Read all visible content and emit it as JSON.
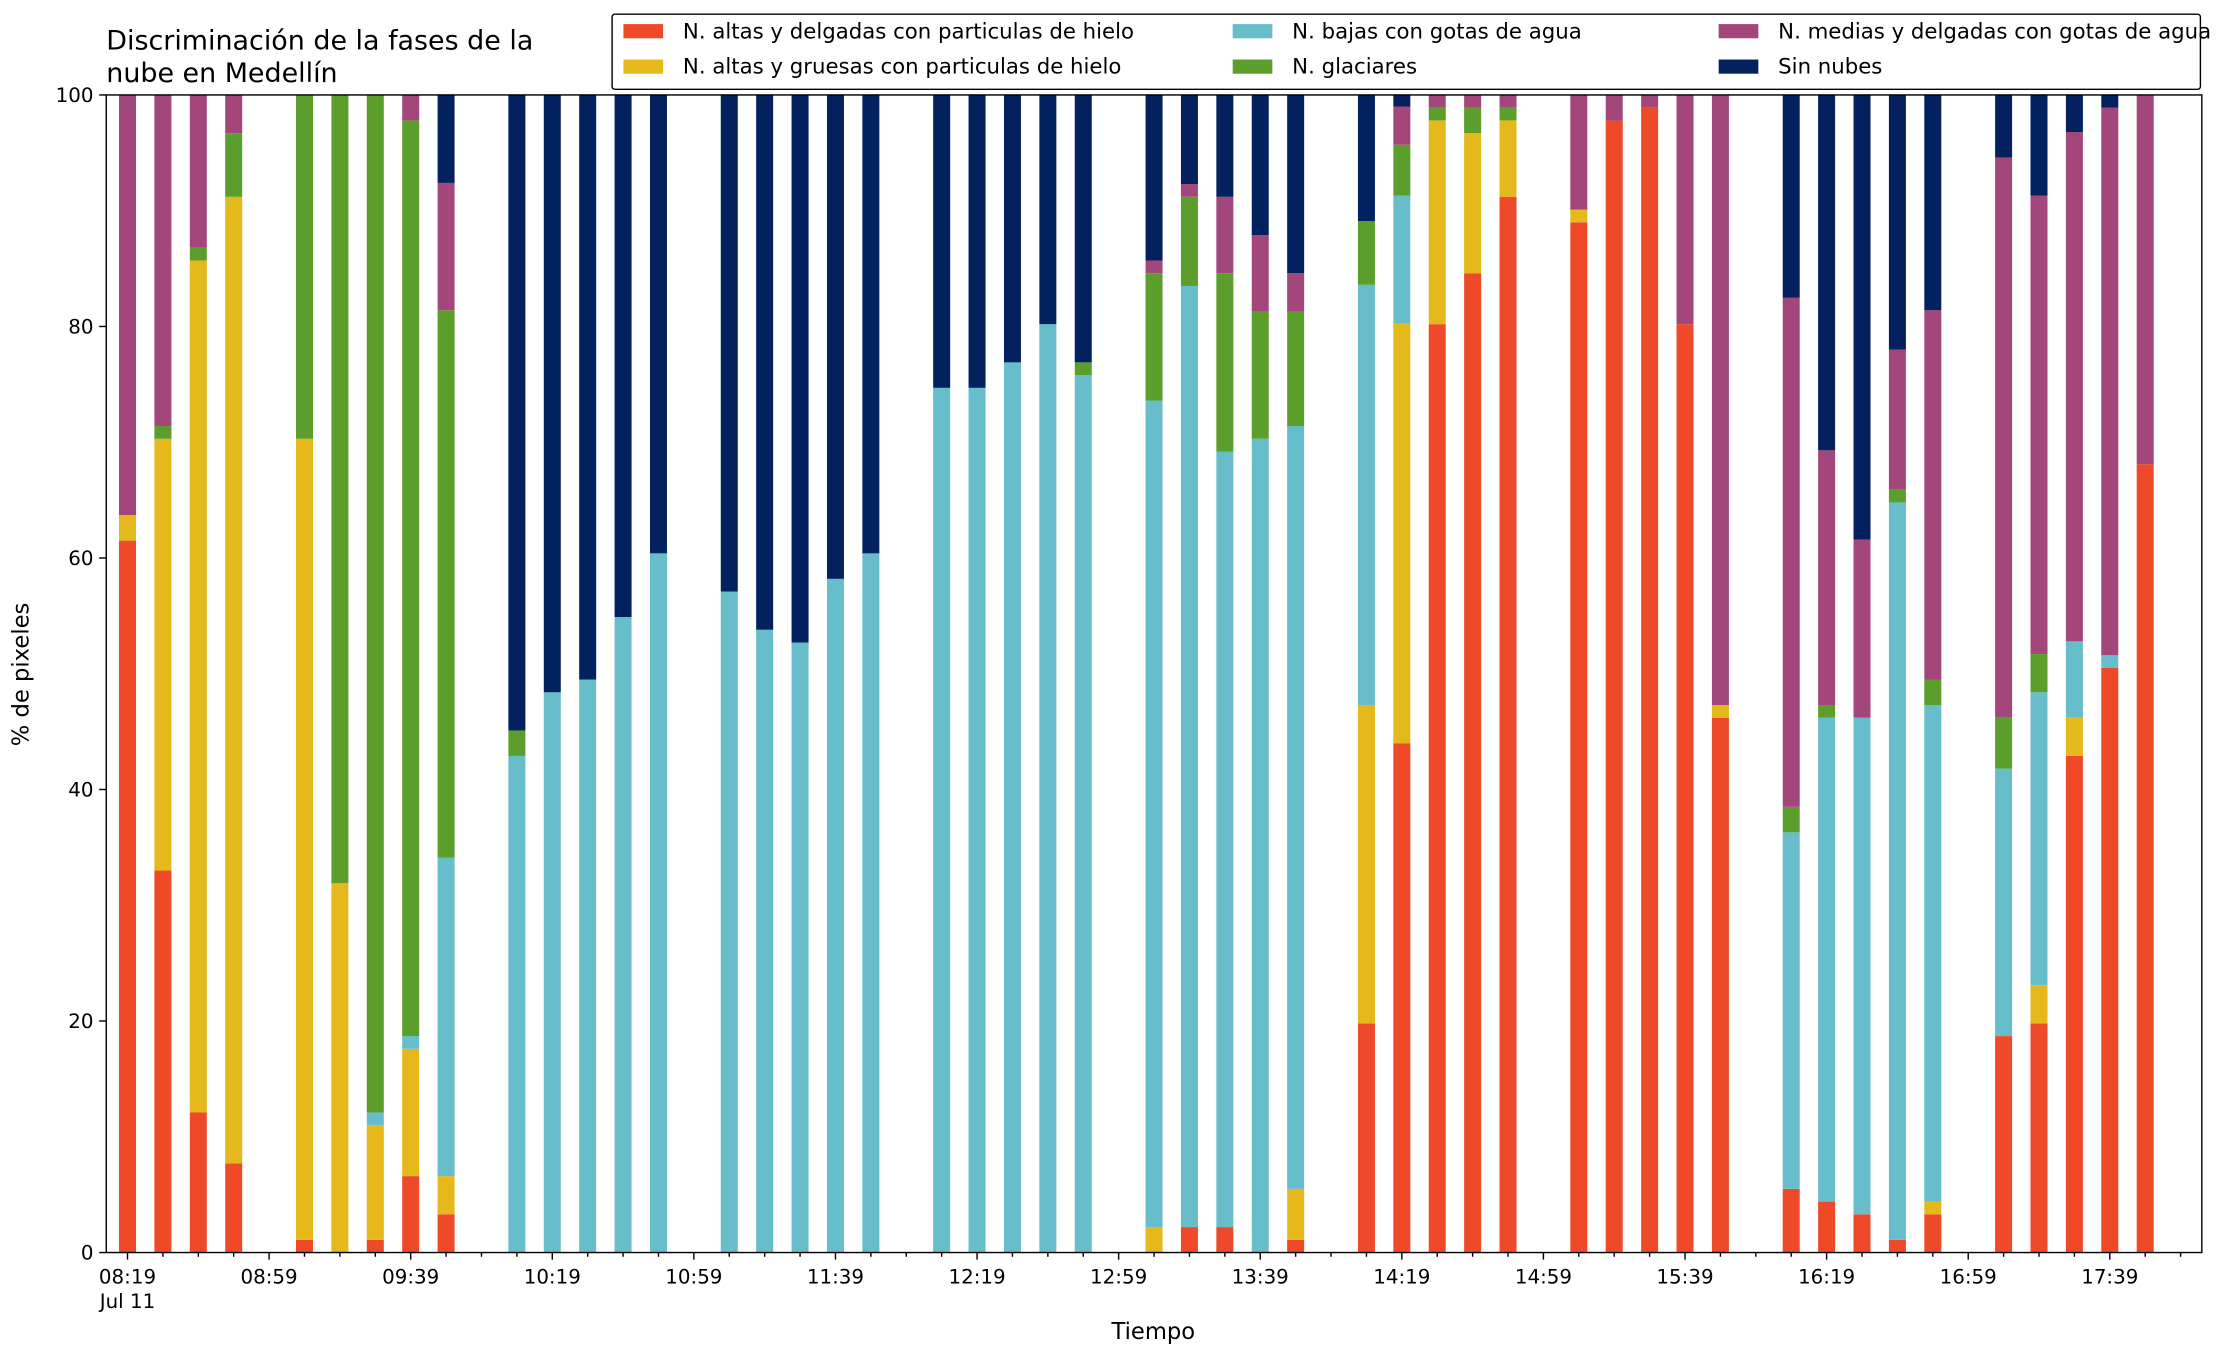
{
  "chart_data": {
    "type": "stacked_bar",
    "title": "Discriminación de la fases de la nube en Medellín",
    "xlabel": "Tiempo",
    "ylabel": "% de pixeles",
    "date_label": "Jul 11",
    "x": [
      "08:19",
      "08:29",
      "08:39",
      "08:49",
      "09:09",
      "09:19",
      "09:29",
      "09:39",
      "09:49",
      "10:09",
      "10:19",
      "10:29",
      "10:39",
      "10:49",
      "11:09",
      "11:19",
      "11:29",
      "11:39",
      "11:49",
      "12:09",
      "12:19",
      "12:29",
      "12:39",
      "12:49",
      "13:09",
      "13:19",
      "13:29",
      "13:39",
      "13:49",
      "14:09",
      "14:19",
      "14:29",
      "14:39",
      "14:49",
      "15:09",
      "15:19",
      "15:29",
      "15:39",
      "15:49",
      "16:09",
      "16:19",
      "16:29",
      "16:39",
      "16:49",
      "17:09",
      "17:19",
      "17:29",
      "17:39",
      "17:49"
    ],
    "series": [
      {
        "name": "N. altas y delgadas con particulas de hielo",
        "color": "#ee4a2a",
        "values": [
          61.5,
          33,
          12.1,
          7.7,
          1.1,
          0,
          1.1,
          6.6,
          3.3,
          0,
          0,
          0,
          0,
          0,
          0,
          0,
          0,
          0,
          0,
          0,
          0,
          0,
          0,
          0,
          0,
          2.2,
          2.2,
          0,
          1.1,
          19.8,
          44,
          80.2,
          84.6,
          91.2,
          89,
          97.8,
          98.9,
          80.2,
          46.2,
          5.5,
          4.4,
          3.3,
          1.1,
          3.3,
          18.7,
          19.8,
          42.9,
          50.5,
          68.1
        ]
      },
      {
        "name": "N. altas y gruesas con particulas de hielo",
        "color": "#e5b81b",
        "values": [
          2.2,
          37.3,
          73.6,
          83.5,
          69.2,
          31.9,
          9.9,
          11,
          3.3,
          0,
          0,
          0,
          0,
          0,
          0,
          0,
          0,
          0,
          0,
          0,
          0,
          0,
          0,
          0,
          2.2,
          0,
          0,
          0,
          4.4,
          27.5,
          36.3,
          17.6,
          12.1,
          6.6,
          1.1,
          0,
          0,
          0,
          1.1,
          0,
          0,
          0,
          0,
          1.1,
          0,
          3.3,
          3.3,
          0,
          0
        ]
      },
      {
        "name": "N. bajas con gotas de agua",
        "color": "#67bdc9",
        "values": [
          0,
          0,
          0,
          0,
          0,
          0,
          1.1,
          1.1,
          27.5,
          42.9,
          48.4,
          49.5,
          54.9,
          60.4,
          57.1,
          53.8,
          52.7,
          58.2,
          60.4,
          74.7,
          74.7,
          76.9,
          80.2,
          75.8,
          71.4,
          81.3,
          67,
          70.3,
          65.9,
          36.3,
          11,
          0,
          0,
          0,
          0,
          0,
          0,
          0,
          0,
          30.8,
          41.8,
          42.9,
          63.7,
          42.9,
          23.1,
          25.3,
          6.6,
          1.1,
          0
        ]
      },
      {
        "name": "N. glaciares",
        "color": "#5b9e2b",
        "values": [
          0,
          1.1,
          1.1,
          5.5,
          29.7,
          68.1,
          87.9,
          79.1,
          47.3,
          2.2,
          0,
          0,
          0,
          0,
          0,
          0,
          0,
          0,
          0,
          0,
          0,
          0,
          0,
          1.1,
          11,
          7.7,
          15.4,
          11,
          9.9,
          5.5,
          4.4,
          1.1,
          2.2,
          1.1,
          0,
          0,
          0,
          0,
          0,
          2.2,
          1.1,
          0,
          1.1,
          2.2,
          4.4,
          3.3,
          0,
          0,
          0
        ]
      },
      {
        "name": "N. medias y delgadas con gotas de agua",
        "color": "#a3467c",
        "values": [
          36.3,
          28.6,
          13.2,
          3.3,
          0,
          0,
          0,
          2.2,
          11,
          0,
          0,
          0,
          0,
          0,
          0,
          0,
          0,
          0,
          0,
          0,
          0,
          0,
          0,
          0,
          1.1,
          1.1,
          6.6,
          6.6,
          3.3,
          0,
          3.3,
          1.1,
          1.1,
          1.1,
          9.9,
          2.2,
          1.1,
          19.8,
          52.7,
          44,
          22,
          15.4,
          12.1,
          31.9,
          48.4,
          39.6,
          44,
          47.3,
          31.9
        ]
      },
      {
        "name": "Sin nubes",
        "color": "#03215f",
        "values": [
          0,
          0,
          0,
          0,
          0,
          0,
          0,
          0,
          7.6,
          54.9,
          51.6,
          50.5,
          45.1,
          39.6,
          42.9,
          46.2,
          47.3,
          41.8,
          39.6,
          25.3,
          25.3,
          23.1,
          19.8,
          23.1,
          14.3,
          7.7,
          8.8,
          12.1,
          15.4,
          10.9,
          1,
          0,
          0,
          0,
          0,
          0,
          0,
          0,
          0,
          17.5,
          30.7,
          38.4,
          22,
          18.6,
          5.4,
          8.7,
          3.2,
          1.1,
          0
        ]
      }
    ],
    "xlim": [
      "08:13",
      "18:05"
    ],
    "xticks": [
      "08:19",
      "08:59",
      "09:39",
      "10:19",
      "10:59",
      "11:39",
      "12:19",
      "12:59",
      "13:39",
      "14:19",
      "14:59",
      "15:39",
      "16:19",
      "16:59",
      "17:39"
    ],
    "xminorticks": [
      "08:29",
      "08:39",
      "08:49",
      "09:09",
      "09:19",
      "09:29",
      "09:49",
      "09:59",
      "10:09",
      "10:29",
      "10:39",
      "10:49",
      "11:09",
      "11:19",
      "11:29",
      "11:49",
      "11:59",
      "12:09",
      "12:29",
      "12:39",
      "12:49",
      "13:09",
      "13:19",
      "13:29",
      "13:49",
      "13:59",
      "14:09",
      "14:29",
      "14:39",
      "14:49",
      "15:09",
      "15:19",
      "15:29",
      "15:49",
      "15:59",
      "16:09",
      "16:29",
      "16:39",
      "16:49",
      "17:09",
      "17:19",
      "17:29",
      "17:49",
      "17:59"
    ],
    "ylim": [
      0,
      100
    ],
    "yticks": [
      0,
      20,
      40,
      60,
      80,
      100
    ],
    "legend": "upper right",
    "legend_columns": 3
  }
}
